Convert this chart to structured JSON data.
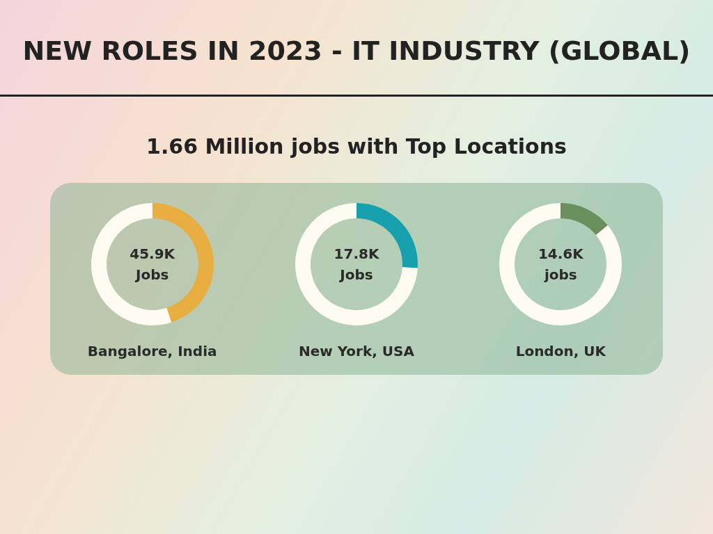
{
  "chart_data": [
    {
      "type": "other",
      "title": "NEW ROLES IN 2023 - IT INDUSTRY (GLOBAL)",
      "subtitle": "1.66 Million jobs with Top Locations"
    },
    {
      "type": "donut",
      "title": "Bangalore, India",
      "categories": [
        null,
        null
      ],
      "values": [
        45,
        55
      ],
      "colors": [
        "#e9ae42",
        "#fdfbf2"
      ],
      "annotations": [
        "45.9K",
        "Jobs"
      ],
      "legend": false
    },
    {
      "type": "donut",
      "title": "New York, USA",
      "categories": [
        null,
        null
      ],
      "values": [
        26,
        74
      ],
      "colors": [
        "#17a0ad",
        "#fdfbf2"
      ],
      "annotations": [
        "17.8K",
        "Jobs"
      ],
      "legend": false
    },
    {
      "type": "donut",
      "title": "London, UK",
      "categories": [
        null,
        null
      ],
      "values": [
        14,
        86
      ],
      "colors": [
        "#6a8f5d",
        "#fdfbf2"
      ],
      "annotations": [
        "14.6K",
        "jobs"
      ],
      "legend": false
    }
  ]
}
